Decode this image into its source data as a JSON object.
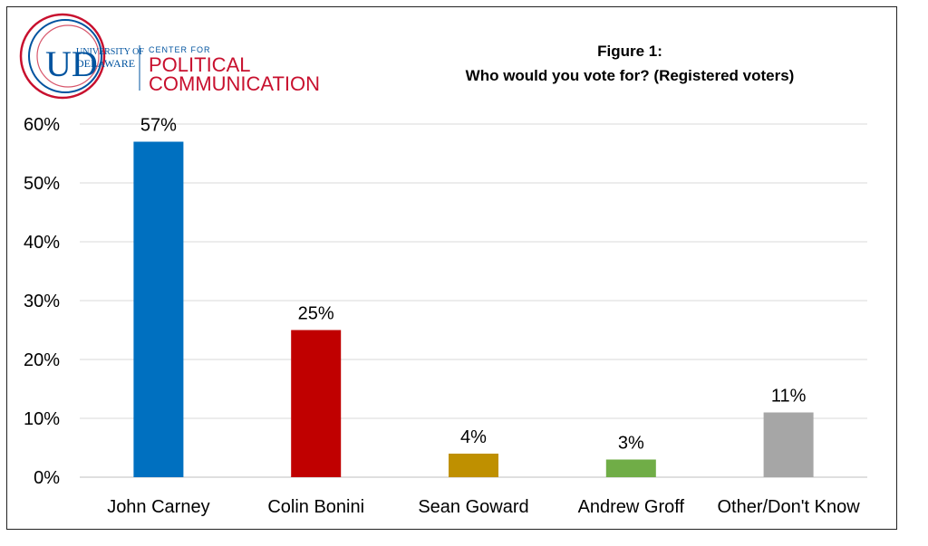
{
  "logo": {
    "line1": "UNIVERSITY OF",
    "line2": "DELAWARE",
    "center_label": "CENTER FOR",
    "center_line1": "POLITICAL",
    "center_line2": "COMMUNICATION",
    "monogram": "UD"
  },
  "chart_data": {
    "type": "bar",
    "title_line1": "Figure 1:",
    "title_line2": "Who would you vote for? (Registered voters)",
    "categories": [
      "John Carney",
      "Colin Bonini",
      "Sean Goward",
      "Andrew Groff",
      "Other/Don't Know"
    ],
    "values": [
      57,
      25,
      4,
      3,
      11
    ],
    "data_labels": [
      "57%",
      "25%",
      "4%",
      "3%",
      "11%"
    ],
    "colors": [
      "#0070C0",
      "#C00000",
      "#BF9000",
      "#70AD47",
      "#A6A6A6"
    ],
    "ylim": [
      0,
      60
    ],
    "yticks": [
      0,
      10,
      20,
      30,
      40,
      50,
      60
    ],
    "ytick_labels": [
      "0%",
      "10%",
      "20%",
      "30%",
      "40%",
      "50%",
      "60%"
    ],
    "grid": true,
    "legend": "none"
  }
}
